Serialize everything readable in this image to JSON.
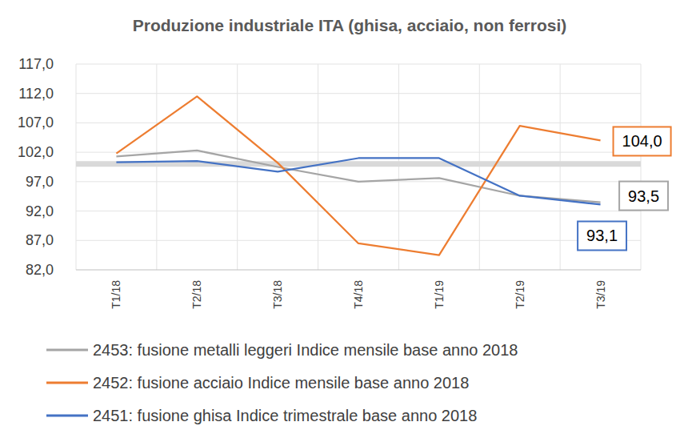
{
  "chart_data": {
    "type": "line",
    "title": "Produzione industriale ITA (ghisa, acciaio, non ferrosi)",
    "categories": [
      "T1/18",
      "T2/18",
      "T3/18",
      "T4/18",
      "T1/19",
      "T2/19",
      "T3/19"
    ],
    "ylim": [
      82,
      117
    ],
    "yticks": [
      {
        "value": 82,
        "label": "82,0"
      },
      {
        "value": 87,
        "label": "87,0"
      },
      {
        "value": 92,
        "label": "92,0"
      },
      {
        "value": 97,
        "label": "97,0"
      },
      {
        "value": 102,
        "label": "102,0"
      },
      {
        "value": 107,
        "label": "107,0"
      },
      {
        "value": 112,
        "label": "112,0"
      },
      {
        "value": 117,
        "label": "117,0"
      }
    ],
    "grid": true,
    "legend": "bottom",
    "reference_line": 100,
    "series": [
      {
        "name": "2453: fusione metalli leggeri Indice mensile base anno 2018",
        "color": "#a5a5a5",
        "values": [
          101.3,
          102.3,
          99.5,
          97.0,
          97.6,
          94.6,
          93.5
        ],
        "data_labels": true,
        "value_labels": [
          null,
          null,
          null,
          null,
          null,
          null,
          "93,5"
        ]
      },
      {
        "name": "2452: fusione acciaio Indice mensile base anno 2018",
        "color": "#ed7d31",
        "values": [
          101.8,
          111.5,
          100.2,
          86.5,
          84.5,
          106.5,
          104.0
        ],
        "data_labels": true,
        "value_labels": [
          null,
          null,
          null,
          null,
          null,
          null,
          "104,0"
        ]
      },
      {
        "name": "2451: fusione ghisa Indice trimestrale base anno 2018",
        "color": "#4472c4",
        "values": [
          100.3,
          100.5,
          98.7,
          101.0,
          101.0,
          94.6,
          93.1
        ],
        "data_labels": true,
        "value_labels": [
          null,
          null,
          null,
          null,
          null,
          null,
          "93,1"
        ]
      }
    ]
  }
}
